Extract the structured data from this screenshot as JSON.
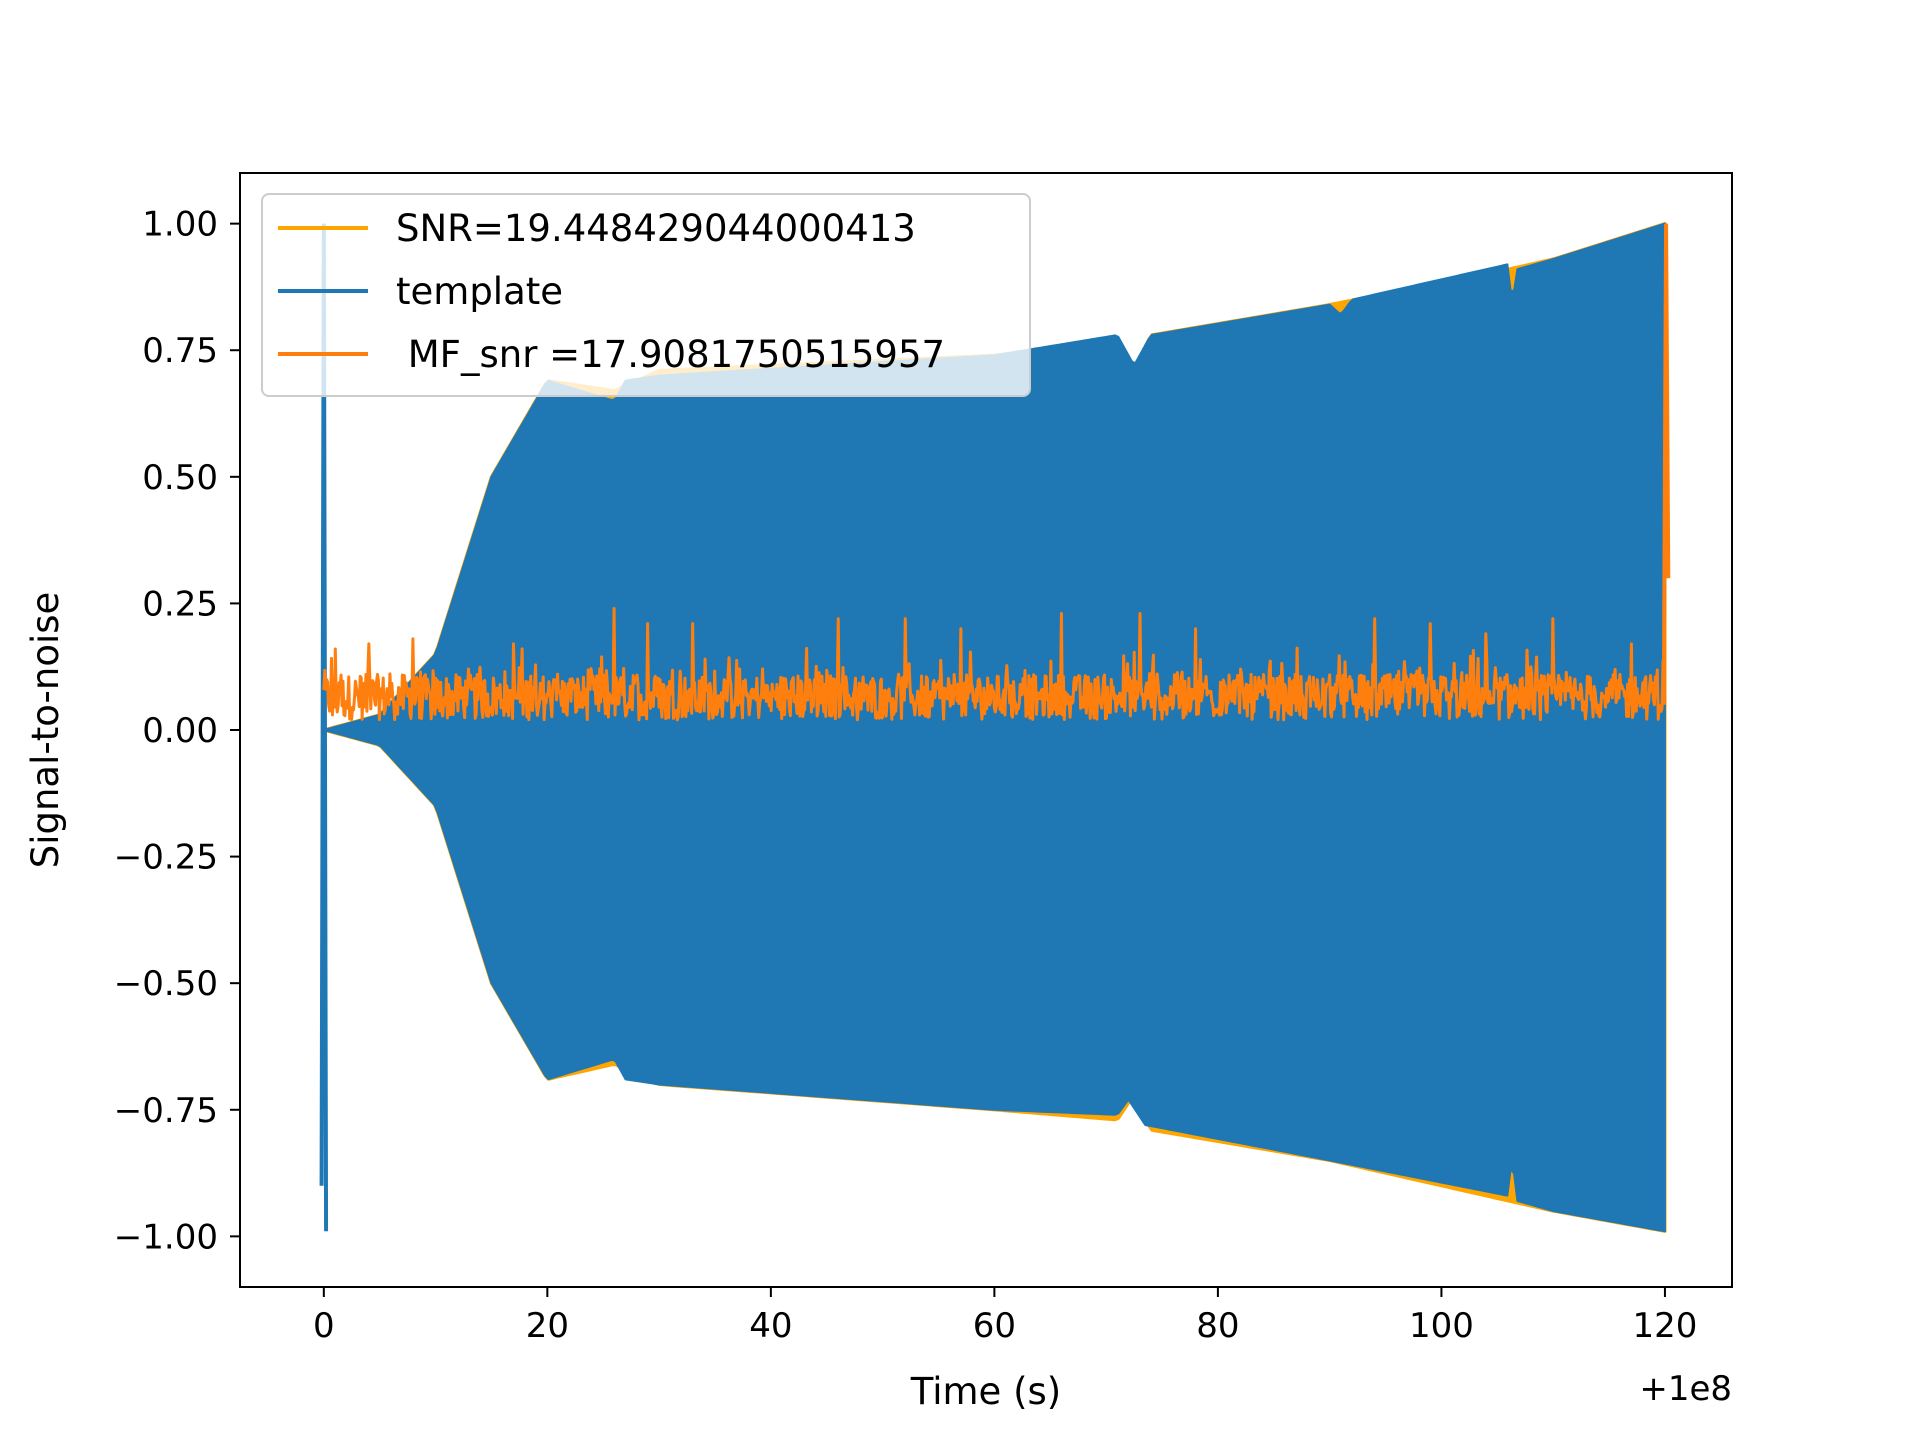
{
  "chart_data": {
    "type": "line",
    "xlabel": "Time (s)",
    "ylabel": "Signal-to-noise",
    "x_offset_label": "+1e8",
    "xlim": [
      -7.5,
      126
    ],
    "ylim": [
      -1.1,
      1.1
    ],
    "xticks": [
      0,
      20,
      40,
      60,
      80,
      100,
      120
    ],
    "yticks": [
      1.0,
      0.75,
      0.5,
      0.25,
      0.0,
      -0.25,
      -0.5,
      -0.75,
      -1.0
    ],
    "xtick_labels": [
      "0",
      "20",
      "40",
      "60",
      "80",
      "100",
      "120"
    ],
    "ytick_labels": [
      "1.00",
      "0.75",
      "0.50",
      "0.25",
      "0.00",
      "−0.25",
      "−0.50",
      "−0.75",
      "−1.00"
    ],
    "grid": false,
    "legend_position": "upper-left",
    "series": [
      {
        "name": "SNR=19.448429044000413",
        "color": "#ffa500",
        "kind": "oscillation-envelope",
        "upper_envelope": [
          [
            0,
            0.0
          ],
          [
            5,
            0.03
          ],
          [
            10,
            0.15
          ],
          [
            15,
            0.5
          ],
          [
            20,
            0.69
          ],
          [
            26,
            0.67
          ],
          [
            30,
            0.71
          ],
          [
            60,
            0.74
          ],
          [
            71,
            0.77
          ],
          [
            72.5,
            0.71
          ],
          [
            74,
            0.78
          ],
          [
            90,
            0.84
          ],
          [
            106,
            0.91
          ],
          [
            110,
            0.93
          ],
          [
            120,
            1.0
          ]
        ],
        "lower_envelope": [
          [
            0,
            0.0
          ],
          [
            5,
            -0.03
          ],
          [
            10,
            -0.15
          ],
          [
            15,
            -0.5
          ],
          [
            20,
            -0.69
          ],
          [
            26,
            -0.66
          ],
          [
            30,
            -0.7
          ],
          [
            60,
            -0.75
          ],
          [
            71,
            -0.77
          ],
          [
            72.5,
            -0.72
          ],
          [
            74,
            -0.79
          ],
          [
            90,
            -0.85
          ],
          [
            106,
            -0.93
          ],
          [
            110,
            -0.95
          ],
          [
            120,
            -0.99
          ]
        ]
      },
      {
        "name": "template",
        "color": "#1f77b4",
        "kind": "oscillation-envelope",
        "upper_envelope": [
          [
            0,
            0.0
          ],
          [
            5,
            0.03
          ],
          [
            10,
            0.15
          ],
          [
            15,
            0.5
          ],
          [
            20,
            0.69
          ],
          [
            26,
            0.65
          ],
          [
            27,
            0.69
          ],
          [
            30,
            0.7
          ],
          [
            60,
            0.74
          ],
          [
            71,
            0.78
          ],
          [
            72.5,
            0.72
          ],
          [
            74,
            0.78
          ],
          [
            90,
            0.84
          ],
          [
            91,
            0.82
          ],
          [
            92,
            0.85
          ],
          [
            106,
            0.92
          ],
          [
            106.3,
            0.84
          ],
          [
            106.8,
            0.91
          ],
          [
            110,
            0.93
          ],
          [
            120,
            1.0
          ]
        ],
        "lower_envelope": [
          [
            0,
            0.0
          ],
          [
            5,
            -0.03
          ],
          [
            10,
            -0.15
          ],
          [
            15,
            -0.5
          ],
          [
            20,
            -0.69
          ],
          [
            26,
            -0.65
          ],
          [
            27,
            -0.69
          ],
          [
            30,
            -0.7
          ],
          [
            60,
            -0.75
          ],
          [
            71,
            -0.76
          ],
          [
            72,
            -0.73
          ],
          [
            73.5,
            -0.78
          ],
          [
            90,
            -0.85
          ],
          [
            106,
            -0.92
          ],
          [
            106.3,
            -0.84
          ],
          [
            106.8,
            -0.93
          ],
          [
            110,
            -0.95
          ],
          [
            120,
            -0.99
          ]
        ],
        "initial_spike": [
          [
            -0.2,
            -0.9
          ],
          [
            0,
            1.0
          ],
          [
            0.2,
            -0.99
          ]
        ],
        "end_spike": [
          [
            120,
            1.0
          ],
          [
            120.2,
            0.3
          ]
        ]
      },
      {
        "name": " MF_snr =17.9081750515957",
        "color": "#ff7f0e",
        "kind": "noise",
        "baseline": 0.065,
        "range": [
          0.0,
          0.23
        ],
        "peaks": [
          [
            1,
            0.16
          ],
          [
            4,
            0.17
          ],
          [
            8,
            0.18
          ],
          [
            17,
            0.17
          ],
          [
            26,
            0.24
          ],
          [
            29,
            0.21
          ],
          [
            33,
            0.21
          ],
          [
            46,
            0.22
          ],
          [
            52,
            0.22
          ],
          [
            57,
            0.2
          ],
          [
            66,
            0.23
          ],
          [
            73,
            0.23
          ],
          [
            78,
            0.2
          ],
          [
            94,
            0.22
          ],
          [
            99,
            0.21
          ],
          [
            104,
            0.19
          ],
          [
            110,
            0.22
          ],
          [
            117,
            0.17
          ]
        ],
        "end_spike": [
          [
            119.9,
            0.05
          ],
          [
            120.1,
            1.0
          ],
          [
            120.3,
            0.3
          ]
        ]
      }
    ]
  }
}
